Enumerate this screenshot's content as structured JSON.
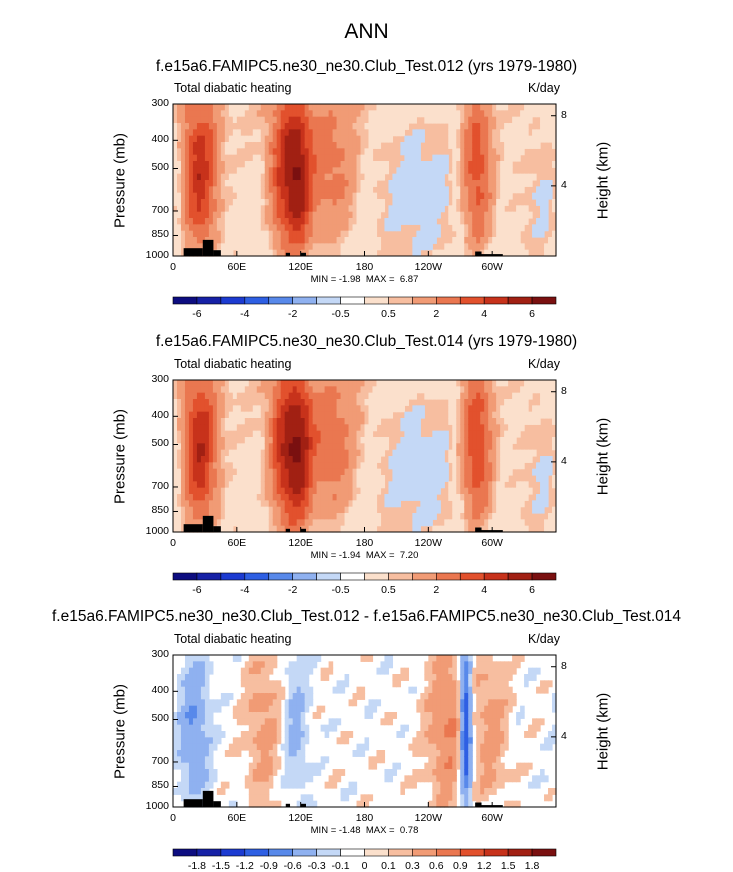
{
  "title": "ANN",
  "panels": [
    {
      "title": "f.e15a6.FAMIPC5.ne30_ne30.Club_Test.012 (yrs 1979-1980)",
      "left_label": "Total diabatic heating",
      "right_label": "K/day",
      "stats": "MIN = -1.98  MAX =  6.87",
      "colorbar_labels": [
        "-6",
        "-4",
        "-2",
        "-0.5",
        "0.5",
        "2",
        "4",
        "6"
      ],
      "fill_style": "field"
    },
    {
      "title": "f.e15a6.FAMIPC5.ne30_ne30.Club_Test.014 (yrs 1979-1980)",
      "left_label": "Total diabatic heating",
      "right_label": "K/day",
      "stats": "MIN = -1.94  MAX =  7.20",
      "colorbar_labels": [
        "-6",
        "-4",
        "-2",
        "-0.5",
        "0.5",
        "2",
        "4",
        "6"
      ],
      "fill_style": "field"
    },
    {
      "title": "f.e15a6.FAMIPC5.ne30_ne30.Club_Test.012 - f.e15a6.FAMIPC5.ne30_ne30.Club_Test.014",
      "left_label": "Total diabatic heating",
      "right_label": "K/day",
      "stats": "MIN = -1.48  MAX =  0.78",
      "colorbar_labels": [
        "-1.8",
        "-1.5",
        "-1.2",
        "-0.9",
        "-0.6",
        "-0.3",
        "-0.1",
        "0",
        "0.1",
        "0.3",
        "0.6",
        "0.9",
        "1.2",
        "1.5",
        "1.8"
      ],
      "fill_style": "diff"
    }
  ],
  "chart_data": {
    "type": "heatmap",
    "title": "ANN",
    "xlabel": "",
    "ylabel": "Pressure (mb)",
    "ylabel_right": "Height (km)",
    "xticks": [
      "0",
      "60E",
      "120E",
      "180",
      "120W",
      "60W"
    ],
    "xtick_values": [
      0,
      60,
      120,
      180,
      240,
      300
    ],
    "xlim": [
      0,
      360
    ],
    "yticks": [
      "300",
      "400",
      "500",
      "700",
      "850",
      "1000"
    ],
    "ytick_values": [
      300,
      400,
      500,
      700,
      850,
      1000
    ],
    "ylim": [
      1000,
      300
    ],
    "right_ticks": [
      "8",
      "4"
    ],
    "right_tick_values": [
      8,
      4
    ],
    "colorbar_colors": [
      "#0d0d80",
      "#1621a6",
      "#1c3bd1",
      "#2e5fe3",
      "#5889ea",
      "#8fb1f0",
      "#c4d8f6",
      "#ffffff",
      "#fbe0cc",
      "#f7bea0",
      "#f19b75",
      "#ea7750",
      "#e2512d",
      "#c7321b",
      "#a12013",
      "#7a1010"
    ],
    "panels": [
      {
        "name": "Test.012",
        "min": -1.98,
        "max": 6.87,
        "features": [
          {
            "lon": 25,
            "width": 12,
            "value": 4.5
          },
          {
            "lon": 105,
            "width": 10,
            "value": 4.0
          },
          {
            "lon": 120,
            "width": 8,
            "value": 3.5
          },
          {
            "lon": 150,
            "width": 22,
            "value": 2.5
          },
          {
            "lon": 235,
            "width": 50,
            "value": -1.6
          },
          {
            "lon": 285,
            "width": 12,
            "value": 4.2
          },
          {
            "lon": 350,
            "width": 15,
            "value": -1.2
          }
        ]
      },
      {
        "name": "Test.014",
        "min": -1.94,
        "max": 7.2,
        "features": [
          {
            "lon": 25,
            "width": 12,
            "value": 4.7
          },
          {
            "lon": 105,
            "width": 10,
            "value": 4.2
          },
          {
            "lon": 120,
            "width": 8,
            "value": 3.6
          },
          {
            "lon": 150,
            "width": 22,
            "value": 2.7
          },
          {
            "lon": 235,
            "width": 50,
            "value": -1.6
          },
          {
            "lon": 285,
            "width": 12,
            "value": 4.6
          },
          {
            "lon": 350,
            "width": 15,
            "value": -1.2
          }
        ]
      },
      {
        "name": "Test.012 - Test.014",
        "min": -1.48,
        "max": 0.78,
        "features": [
          {
            "lon": 20,
            "width": 10,
            "value": -0.6
          },
          {
            "lon": 85,
            "width": 12,
            "value": 0.4
          },
          {
            "lon": 115,
            "width": 8,
            "value": -0.4
          },
          {
            "lon": 260,
            "width": 15,
            "value": 0.6
          },
          {
            "lon": 275,
            "width": 4,
            "value": -1.48
          },
          {
            "lon": 300,
            "width": 10,
            "value": 0.4
          }
        ]
      }
    ]
  }
}
